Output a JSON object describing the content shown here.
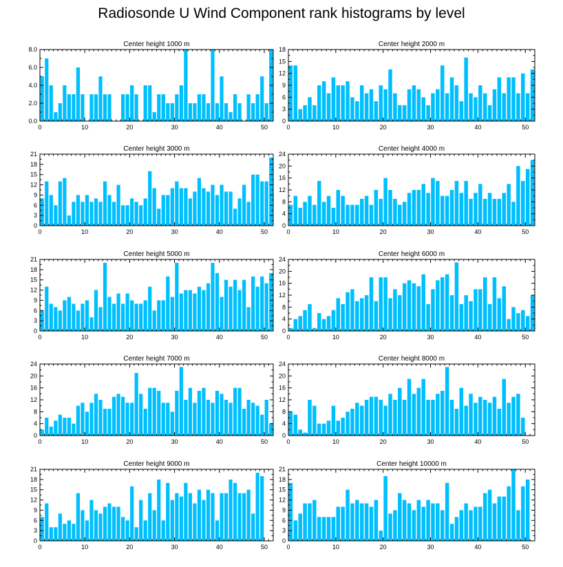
{
  "page_title": "Radiosonde U Wind Component rank histograms by level",
  "colors": {
    "bar": "#00bfff",
    "axis": "#000000"
  },
  "chart_data": [
    {
      "type": "bar",
      "title": "Center height 1000 m",
      "xlim": [
        0,
        52
      ],
      "ylim": [
        0,
        8
      ],
      "xticks": [
        0,
        10,
        20,
        30,
        40,
        50
      ],
      "yticks": [
        "0.0",
        "2.0",
        "4.0",
        "6.0",
        "8.0"
      ],
      "ytick_values": [
        0,
        2,
        4,
        6,
        8
      ],
      "values": [
        5,
        7,
        4,
        1,
        2,
        4,
        3,
        3,
        6,
        3,
        0,
        3,
        3,
        5,
        3,
        3,
        0,
        0,
        3,
        3,
        4,
        3,
        0,
        4,
        4,
        1,
        3,
        3,
        2,
        2,
        3,
        4,
        8,
        2,
        2,
        3,
        3,
        2,
        8,
        2,
        5,
        2,
        1,
        3,
        2,
        0,
        3,
        2,
        3,
        5,
        2,
        8
      ]
    },
    {
      "type": "bar",
      "title": "Center height 2000 m",
      "xlim": [
        0,
        52
      ],
      "ylim": [
        0,
        18
      ],
      "xticks": [
        0,
        10,
        20,
        30,
        40,
        50
      ],
      "yticks": [
        "0",
        "3",
        "6",
        "9",
        "12",
        "15",
        "18"
      ],
      "ytick_values": [
        0,
        3,
        6,
        9,
        12,
        15,
        18
      ],
      "values": [
        14,
        14,
        3,
        4,
        6,
        4,
        9,
        10,
        7,
        11,
        9,
        9,
        10,
        6,
        5,
        9,
        7,
        8,
        5,
        9,
        8,
        13,
        7,
        4,
        4,
        8,
        9,
        8,
        6,
        4,
        7,
        8,
        14,
        7,
        11,
        9,
        5,
        16,
        7,
        6,
        9,
        7,
        4,
        8,
        11,
        7,
        11,
        11,
        7,
        12,
        7,
        13
      ]
    },
    {
      "type": "bar",
      "title": "Center height 3000 m",
      "xlim": [
        0,
        52
      ],
      "ylim": [
        0,
        21
      ],
      "xticks": [
        0,
        10,
        20,
        30,
        40,
        50
      ],
      "yticks": [
        "0",
        "3",
        "6",
        "9",
        "12",
        "15",
        "18",
        "21"
      ],
      "ytick_values": [
        0,
        3,
        6,
        9,
        12,
        15,
        18,
        21
      ],
      "values": [
        8,
        13,
        9,
        6,
        13,
        14,
        3,
        7,
        9,
        7,
        9,
        7,
        8,
        7,
        13,
        9,
        7,
        12,
        6,
        6,
        8,
        7,
        6,
        8,
        16,
        11,
        5,
        9,
        9,
        11,
        13,
        11,
        11,
        8,
        10,
        14,
        11,
        10,
        12,
        9,
        12,
        10,
        10,
        5,
        8,
        12,
        7,
        15,
        15,
        13,
        13,
        20
      ]
    },
    {
      "type": "bar",
      "title": "Center height 4000 m",
      "xlim": [
        0,
        52
      ],
      "ylim": [
        0,
        24
      ],
      "xticks": [
        0,
        10,
        20,
        30,
        40,
        50
      ],
      "yticks": [
        "0",
        "4",
        "8",
        "12",
        "16",
        "20",
        "24"
      ],
      "ytick_values": [
        0,
        4,
        8,
        12,
        16,
        20,
        24
      ],
      "values": [
        7,
        10,
        6,
        8,
        10,
        7,
        15,
        8,
        10,
        6,
        12,
        10,
        7,
        7,
        7,
        9,
        10,
        7,
        12,
        9,
        16,
        12,
        9,
        7,
        8,
        11,
        12,
        12,
        14,
        11,
        16,
        15,
        10,
        10,
        12,
        15,
        11,
        15,
        9,
        11,
        14,
        9,
        11,
        9,
        9,
        11,
        14,
        8,
        20,
        15,
        19,
        22
      ]
    },
    {
      "type": "bar",
      "title": "Center height 5000 m",
      "xlim": [
        0,
        52
      ],
      "ylim": [
        0,
        21
      ],
      "xticks": [
        0,
        10,
        20,
        30,
        40,
        50
      ],
      "yticks": [
        "0",
        "3",
        "6",
        "9",
        "12",
        "15",
        "18",
        "21"
      ],
      "ytick_values": [
        0,
        3,
        6,
        9,
        12,
        15,
        18,
        21
      ],
      "values": [
        6,
        13,
        8,
        7,
        6,
        9,
        10,
        8,
        6,
        8,
        9,
        4,
        12,
        7,
        20,
        10,
        8,
        11,
        8,
        11,
        9,
        8,
        8,
        9,
        13,
        6,
        9,
        9,
        16,
        10,
        20,
        11,
        12,
        12,
        11,
        13,
        12,
        14,
        20,
        17,
        10,
        15,
        13,
        15,
        12,
        15,
        7,
        16,
        13,
        16,
        14,
        17
      ]
    },
    {
      "type": "bar",
      "title": "Center height 6000 m",
      "xlim": [
        0,
        52
      ],
      "ylim": [
        0,
        24
      ],
      "xticks": [
        0,
        10,
        20,
        30,
        40,
        50
      ],
      "yticks": [
        "0",
        "4",
        "8",
        "12",
        "16",
        "20",
        "24"
      ],
      "ytick_values": [
        0,
        4,
        8,
        12,
        16,
        20,
        24
      ],
      "values": [
        1,
        4,
        5,
        7,
        9,
        1,
        6,
        4,
        5,
        7,
        11,
        9,
        13,
        14,
        10,
        11,
        12,
        18,
        10,
        18,
        18,
        11,
        14,
        12,
        16,
        17,
        16,
        15,
        19,
        9,
        14,
        17,
        18,
        19,
        12,
        23,
        9,
        12,
        10,
        14,
        14,
        18,
        9,
        18,
        11,
        15,
        4,
        8,
        6,
        7,
        5,
        12
      ]
    },
    {
      "type": "bar",
      "title": "Center height 7000 m",
      "xlim": [
        0,
        52
      ],
      "ylim": [
        0,
        24
      ],
      "xticks": [
        0,
        10,
        20,
        30,
        40,
        50
      ],
      "yticks": [
        "0",
        "4",
        "8",
        "12",
        "16",
        "20",
        "24"
      ],
      "ytick_values": [
        0,
        4,
        8,
        12,
        16,
        20,
        24
      ],
      "values": [
        2,
        6,
        3,
        5,
        7,
        6,
        6,
        4,
        10,
        11,
        8,
        11,
        14,
        12,
        9,
        9,
        13,
        14,
        13,
        11,
        11,
        21,
        14,
        9,
        16,
        16,
        15,
        11,
        11,
        8,
        15,
        23,
        12,
        16,
        11,
        15,
        16,
        12,
        11,
        15,
        14,
        12,
        11,
        16,
        16,
        9,
        12,
        11,
        10,
        7,
        12,
        4
      ]
    },
    {
      "type": "bar",
      "title": "Center height 8000 m",
      "xlim": [
        0,
        52
      ],
      "ylim": [
        0,
        24
      ],
      "xticks": [
        0,
        10,
        20,
        30,
        40,
        50
      ],
      "yticks": [
        "0",
        "4",
        "8",
        "12",
        "16",
        "20",
        "24"
      ],
      "ytick_values": [
        0,
        4,
        8,
        12,
        16,
        20,
        24
      ],
      "values": [
        8,
        7,
        2,
        1,
        12,
        10,
        4,
        4,
        5,
        10,
        5,
        6,
        8,
        9,
        11,
        10,
        12,
        13,
        13,
        12,
        10,
        14,
        12,
        16,
        12,
        19,
        14,
        16,
        19,
        12,
        12,
        14,
        15,
        23,
        12,
        9,
        16,
        10,
        14,
        11,
        13,
        12,
        11,
        13,
        9,
        19,
        11,
        13,
        14,
        6,
        0,
        0
      ]
    },
    {
      "type": "bar",
      "title": "Center height 9000 m",
      "xlim": [
        0,
        52
      ],
      "ylim": [
        0,
        21
      ],
      "xticks": [
        0,
        10,
        20,
        30,
        40,
        50
      ],
      "yticks": [
        "0",
        "3",
        "6",
        "9",
        "12",
        "15",
        "18",
        "21"
      ],
      "ytick_values": [
        0,
        3,
        6,
        9,
        12,
        15,
        18,
        21
      ],
      "values": [
        7,
        11,
        4,
        4,
        8,
        5,
        6,
        5,
        14,
        9,
        6,
        12,
        9,
        8,
        10,
        11,
        10,
        10,
        7,
        6,
        16,
        4,
        12,
        6,
        14,
        9,
        18,
        6,
        17,
        12,
        14,
        13,
        17,
        14,
        11,
        15,
        12,
        15,
        14,
        6,
        14,
        14,
        18,
        17,
        14,
        14,
        15,
        8,
        20,
        19,
        0,
        0
      ]
    },
    {
      "type": "bar",
      "title": "Center height 10000 m",
      "xlim": [
        0,
        52
      ],
      "ylim": [
        0,
        21
      ],
      "xticks": [
        0,
        10,
        20,
        30,
        40,
        50
      ],
      "yticks": [
        "0",
        "3",
        "6",
        "9",
        "12",
        "15",
        "18",
        "21"
      ],
      "ytick_values": [
        0,
        3,
        6,
        9,
        12,
        15,
        18,
        21
      ],
      "values": [
        17,
        6,
        8,
        11,
        11,
        12,
        7,
        7,
        7,
        7,
        10,
        10,
        15,
        11,
        12,
        11,
        11,
        10,
        12,
        3,
        19,
        8,
        9,
        14,
        12,
        11,
        9,
        12,
        10,
        12,
        11,
        11,
        9,
        17,
        5,
        7,
        9,
        11,
        9,
        10,
        10,
        14,
        15,
        11,
        13,
        13,
        16,
        21,
        9,
        16,
        18,
        0
      ]
    }
  ]
}
